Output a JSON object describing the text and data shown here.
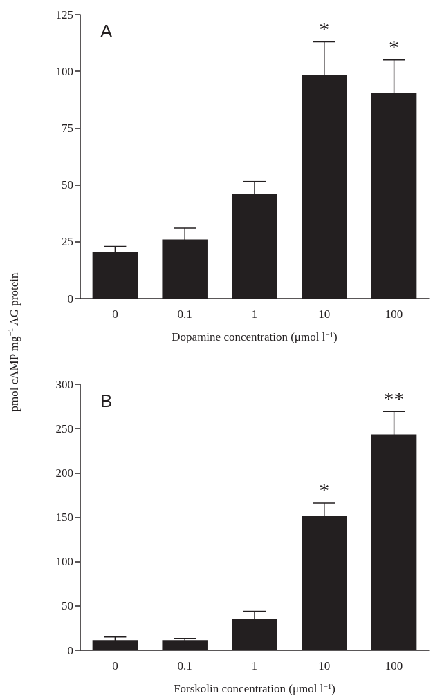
{
  "chart_data": [
    {
      "type": "bar",
      "title": "A",
      "xlabel": "Dopamine concentration (μmol l$^{−1}$)",
      "ylabel": "pmol cAMP mg$^{−1}$ AG protein",
      "categories": [
        "0",
        "0.1",
        "1",
        "10",
        "100"
      ],
      "values": [
        20.5,
        26,
        46,
        98.5,
        90.5
      ],
      "errors": [
        2.5,
        5,
        5.5,
        14.5,
        14.5
      ],
      "color": "#231f20",
      "ylim": [
        0,
        125
      ],
      "yticks": [
        0,
        25,
        50,
        75,
        100,
        125
      ],
      "grid": false,
      "annotations": [
        "*",
        "*"
      ]
    },
    {
      "type": "bar",
      "title": "B",
      "xlabel": "Forskolin concentration (μmol l$^{−1}$)",
      "categories": [
        "0",
        "0.1",
        "1",
        "10",
        "100"
      ],
      "values": [
        11.5,
        11.5,
        35,
        152,
        243.5
      ],
      "errors": [
        3.5,
        2,
        9,
        14,
        26
      ],
      "color": "#231f20",
      "ylim": [
        0,
        300
      ],
      "yticks": [
        0,
        50,
        100,
        150,
        200,
        250,
        300
      ],
      "grid": false,
      "annotations": [
        "*",
        "**"
      ]
    }
  ]
}
